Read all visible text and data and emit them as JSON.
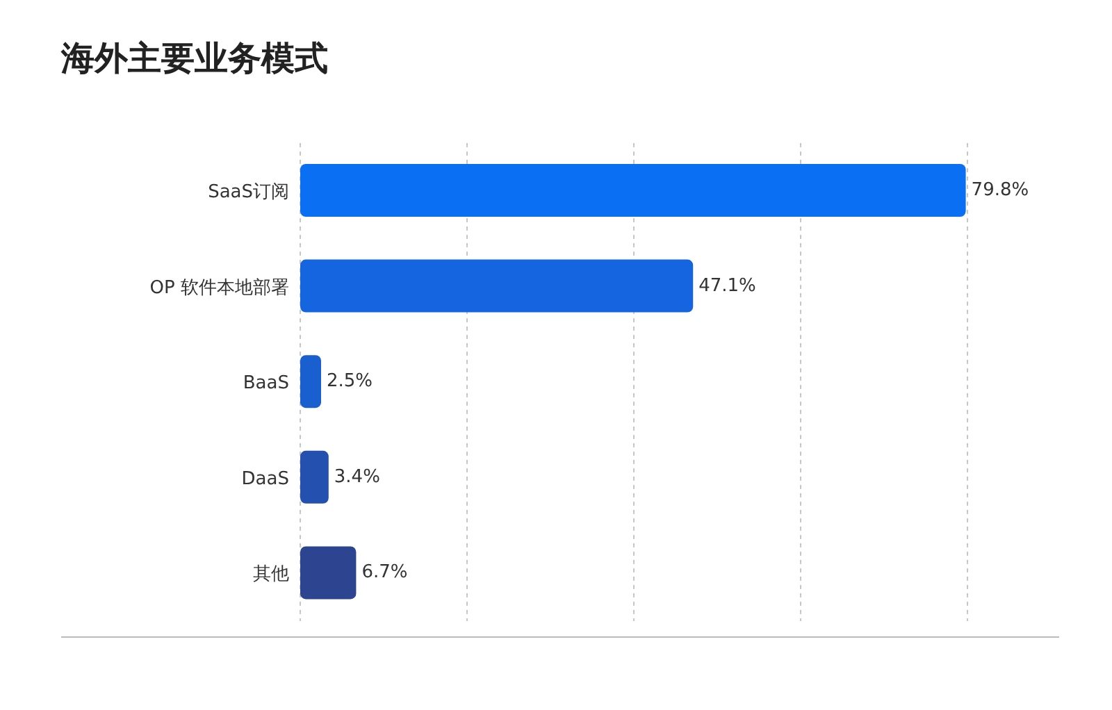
{
  "chart_data": {
    "type": "bar",
    "orientation": "horizontal",
    "title": "海外主要业务模式",
    "categories": [
      "SaaS订阅",
      "OP 软件本地部署",
      "BaaS",
      "DaaS",
      "其他"
    ],
    "values": [
      79.8,
      47.1,
      2.5,
      3.4,
      6.7
    ],
    "value_labels": [
      "79.8%",
      "47.1%",
      "2.5%",
      "3.4%",
      "6.7%"
    ],
    "colors": [
      "#0a6ff2",
      "#1565e0",
      "#1a5fd0",
      "#2450b0",
      "#2d4590"
    ],
    "xlim": [
      0,
      80
    ],
    "xticks": [
      {
        "value": 0,
        "label": null
      },
      {
        "value": 20,
        "label": null
      },
      {
        "value": 40,
        "label": null
      },
      {
        "value": 60,
        "label": null
      },
      {
        "value": 80,
        "label": null
      }
    ],
    "tick_labels": "y",
    "grid": "x",
    "legend": false
  }
}
